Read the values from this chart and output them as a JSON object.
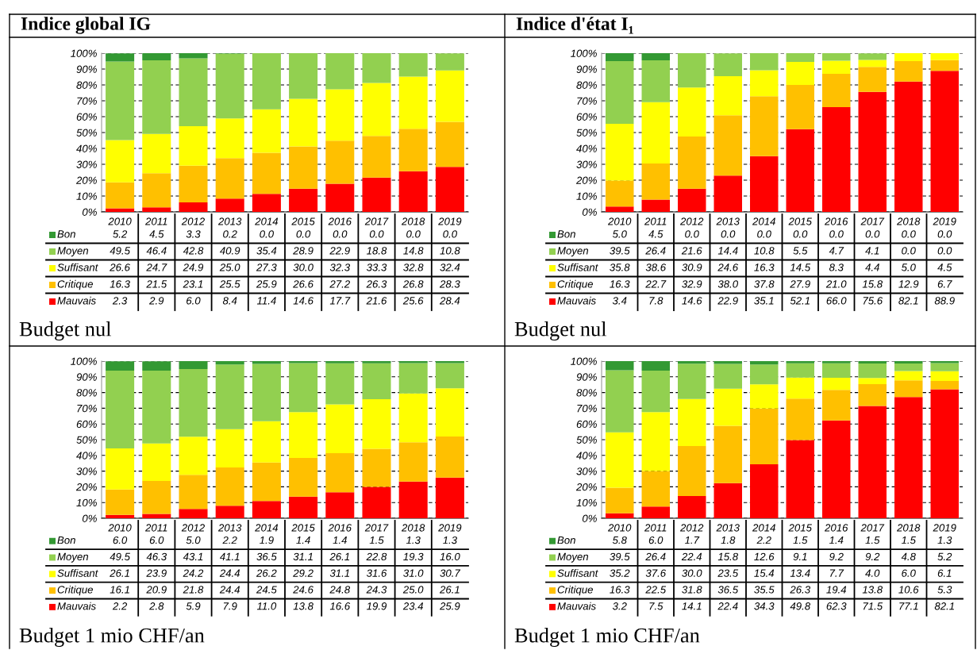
{
  "chart_data": [
    {
      "type": "bar",
      "stacked": true,
      "legend": "bottom left",
      "title": "Indice global IG",
      "annotations": [
        "Budget nul"
      ],
      "grid": "y",
      "categories": [
        "2010",
        "2011",
        "2012",
        "2013",
        "2014",
        "2015",
        "2016",
        "2017",
        "2018",
        "2019"
      ],
      "ylim": [
        0,
        100
      ],
      "yticks": [
        {
          "value": 0,
          "label": "0%"
        },
        {
          "value": 10,
          "label": "10%"
        },
        {
          "value": 20,
          "label": "20%"
        },
        {
          "value": 30,
          "label": "30%"
        },
        {
          "value": 40,
          "label": "40%"
        },
        {
          "value": 50,
          "label": "50%"
        },
        {
          "value": 60,
          "label": "60%"
        },
        {
          "value": 70,
          "label": "70%"
        },
        {
          "value": 80,
          "label": "80%"
        },
        {
          "value": 90,
          "label": "90%"
        },
        {
          "value": 100,
          "label": "100%"
        }
      ],
      "series": [
        {
          "name": "Mauvais",
          "color": "#ff0000",
          "values": [
            2.3,
            2.9,
            6.0,
            8.4,
            11.4,
            14.6,
            17.7,
            21.6,
            25.6,
            28.4
          ],
          "value_labels": [
            "2.3",
            "2.9",
            "6.0",
            "8.4",
            "11.4",
            "14.6",
            "17.7",
            "21.6",
            "25.6",
            "28.4"
          ]
        },
        {
          "name": "Critique",
          "color": "#ffc000",
          "values": [
            16.3,
            21.5,
            23.1,
            25.5,
            25.9,
            26.6,
            27.2,
            26.3,
            26.8,
            28.3
          ],
          "value_labels": [
            "16.3",
            "21.5",
            "23.1",
            "25.5",
            "25.9",
            "26.6",
            "27.2",
            "26.3",
            "26.8",
            "28.3"
          ]
        },
        {
          "name": "Suffisant",
          "color": "#ffff00",
          "values": [
            26.6,
            24.7,
            24.9,
            25.0,
            27.3,
            30.0,
            32.3,
            33.3,
            32.8,
            32.4
          ],
          "value_labels": [
            "26.6",
            "24.7",
            "24.9",
            "25.0",
            "27.3",
            "30.0",
            "32.3",
            "33.3",
            "32.8",
            "32.4"
          ]
        },
        {
          "name": "Moyen",
          "color": "#92d050",
          "values": [
            49.5,
            46.4,
            42.8,
            40.9,
            35.4,
            28.9,
            22.9,
            18.8,
            14.8,
            10.8
          ],
          "value_labels": [
            "49.5",
            "46.4",
            "42.8",
            "40.9",
            "35.4",
            "28.9",
            "22.9",
            "18.8",
            "14.8",
            "10.8"
          ]
        },
        {
          "name": "Bon",
          "color": "#339933",
          "values": [
            5.2,
            4.5,
            3.3,
            0.2,
            0.0,
            0.0,
            0.0,
            0.0,
            0.0,
            0.0
          ],
          "value_labels": [
            "5.2",
            "4.5",
            "3.3",
            "0.2",
            "0.0",
            "0.0",
            "0.0",
            "0.0",
            "0.0",
            "0.0"
          ]
        }
      ]
    },
    {
      "type": "bar",
      "stacked": true,
      "legend": "bottom left",
      "title": "Indice d'état I₁",
      "annotations": [
        "Budget nul"
      ],
      "grid": "y",
      "categories": [
        "2010",
        "2011",
        "2012",
        "2013",
        "2014",
        "2015",
        "2016",
        "2017",
        "2018",
        "2019"
      ],
      "ylim": [
        0,
        100
      ],
      "yticks": [
        {
          "value": 0,
          "label": "0%"
        },
        {
          "value": 10,
          "label": "10%"
        },
        {
          "value": 20,
          "label": "20%"
        },
        {
          "value": 30,
          "label": "30%"
        },
        {
          "value": 40,
          "label": "40%"
        },
        {
          "value": 50,
          "label": "50%"
        },
        {
          "value": 60,
          "label": "60%"
        },
        {
          "value": 70,
          "label": "70%"
        },
        {
          "value": 80,
          "label": "80%"
        },
        {
          "value": 90,
          "label": "90%"
        },
        {
          "value": 100,
          "label": "100%"
        }
      ],
      "series": [
        {
          "name": "Mauvais",
          "color": "#ff0000",
          "values": [
            3.4,
            7.8,
            14.6,
            22.9,
            35.1,
            52.1,
            66.0,
            75.6,
            82.1,
            88.9
          ],
          "value_labels": [
            "3.4",
            "7.8",
            "14.6",
            "22.9",
            "35.1",
            "52.1",
            "66.0",
            "75.6",
            "82.1",
            "88.9"
          ]
        },
        {
          "name": "Critique",
          "color": "#ffc000",
          "values": [
            16.3,
            22.7,
            32.9,
            38.0,
            37.8,
            27.9,
            21.0,
            15.8,
            12.9,
            6.7
          ],
          "value_labels": [
            "16.3",
            "22.7",
            "32.9",
            "38.0",
            "37.8",
            "27.9",
            "21.0",
            "15.8",
            "12.9",
            "6.7"
          ]
        },
        {
          "name": "Suffisant",
          "color": "#ffff00",
          "values": [
            35.8,
            38.6,
            30.9,
            24.6,
            16.3,
            14.5,
            8.3,
            4.4,
            5.0,
            4.5
          ],
          "value_labels": [
            "35.8",
            "38.6",
            "30.9",
            "24.6",
            "16.3",
            "14.5",
            "8.3",
            "4.4",
            "5.0",
            "4.5"
          ]
        },
        {
          "name": "Moyen",
          "color": "#92d050",
          "values": [
            39.5,
            26.4,
            21.6,
            14.4,
            10.8,
            5.5,
            4.7,
            4.1,
            0.0,
            0.0
          ],
          "value_labels": [
            "39.5",
            "26.4",
            "21.6",
            "14.4",
            "10.8",
            "5.5",
            "4.7",
            "4.1",
            "0.0",
            "0.0"
          ]
        },
        {
          "name": "Bon",
          "color": "#339933",
          "values": [
            5.0,
            4.5,
            0.0,
            0.0,
            0.0,
            0.0,
            0.0,
            0.0,
            0.0,
            0.0
          ],
          "value_labels": [
            "5.0",
            "4.5",
            "0.0",
            "0.0",
            "0.0",
            "0.0",
            "0.0",
            "0.0",
            "0.0",
            "0.0"
          ]
        }
      ]
    },
    {
      "type": "bar",
      "stacked": true,
      "legend": "bottom left",
      "annotations": [
        "Budget 1 mio CHF/an"
      ],
      "grid": "y",
      "categories": [
        "2010",
        "2011",
        "2012",
        "2013",
        "2014",
        "2015",
        "2016",
        "2017",
        "2018",
        "2019"
      ],
      "ylim": [
        0,
        100
      ],
      "yticks": [
        {
          "value": 0,
          "label": "0%"
        },
        {
          "value": 10,
          "label": "10%"
        },
        {
          "value": 20,
          "label": "20%"
        },
        {
          "value": 30,
          "label": "30%"
        },
        {
          "value": 40,
          "label": "40%"
        },
        {
          "value": 50,
          "label": "50%"
        },
        {
          "value": 60,
          "label": "60%"
        },
        {
          "value": 70,
          "label": "70%"
        },
        {
          "value": 80,
          "label": "80%"
        },
        {
          "value": 90,
          "label": "90%"
        },
        {
          "value": 100,
          "label": "100%"
        }
      ],
      "series": [
        {
          "name": "Mauvais",
          "color": "#ff0000",
          "values": [
            2.2,
            2.8,
            5.9,
            7.9,
            11.0,
            13.8,
            16.6,
            19.9,
            23.4,
            25.9
          ],
          "value_labels": [
            "2.2",
            "2.8",
            "5.9",
            "7.9",
            "11.0",
            "13.8",
            "16.6",
            "19.9",
            "23.4",
            "25.9"
          ]
        },
        {
          "name": "Critique",
          "color": "#ffc000",
          "values": [
            16.1,
            20.9,
            21.8,
            24.4,
            24.5,
            24.6,
            24.8,
            24.3,
            25.0,
            26.1
          ],
          "value_labels": [
            "16.1",
            "20.9",
            "21.8",
            "24.4",
            "24.5",
            "24.6",
            "24.8",
            "24.3",
            "25.0",
            "26.1"
          ]
        },
        {
          "name": "Suffisant",
          "color": "#ffff00",
          "values": [
            26.1,
            23.9,
            24.2,
            24.4,
            26.2,
            29.2,
            31.1,
            31.6,
            31.0,
            30.7
          ],
          "value_labels": [
            "26.1",
            "23.9",
            "24.2",
            "24.4",
            "26.2",
            "29.2",
            "31.1",
            "31.6",
            "31.0",
            "30.7"
          ]
        },
        {
          "name": "Moyen",
          "color": "#92d050",
          "values": [
            49.5,
            46.3,
            43.1,
            41.1,
            36.5,
            31.1,
            26.1,
            22.8,
            19.3,
            16.0
          ],
          "value_labels": [
            "49.5",
            "46.3",
            "43.1",
            "41.1",
            "36.5",
            "31.1",
            "26.1",
            "22.8",
            "19.3",
            "16.0"
          ]
        },
        {
          "name": "Bon",
          "color": "#339933",
          "values": [
            6.0,
            6.0,
            5.0,
            2.2,
            1.9,
            1.4,
            1.4,
            1.5,
            1.3,
            1.3
          ],
          "value_labels": [
            "6.0",
            "6.0",
            "5.0",
            "2.2",
            "1.9",
            "1.4",
            "1.4",
            "1.5",
            "1.3",
            "1.3"
          ]
        }
      ]
    },
    {
      "type": "bar",
      "stacked": true,
      "legend": "bottom left",
      "annotations": [
        "Budget 1 mio CHF/an"
      ],
      "grid": "y",
      "categories": [
        "2010",
        "2011",
        "2012",
        "2013",
        "2014",
        "2015",
        "2016",
        "2017",
        "2018",
        "2019"
      ],
      "ylim": [
        0,
        100
      ],
      "yticks": [
        {
          "value": 0,
          "label": "0%"
        },
        {
          "value": 10,
          "label": "10%"
        },
        {
          "value": 20,
          "label": "20%"
        },
        {
          "value": 30,
          "label": "30%"
        },
        {
          "value": 40,
          "label": "40%"
        },
        {
          "value": 50,
          "label": "50%"
        },
        {
          "value": 60,
          "label": "60%"
        },
        {
          "value": 70,
          "label": "70%"
        },
        {
          "value": 80,
          "label": "80%"
        },
        {
          "value": 90,
          "label": "90%"
        },
        {
          "value": 100,
          "label": "100%"
        }
      ],
      "series": [
        {
          "name": "Mauvais",
          "color": "#ff0000",
          "values": [
            3.2,
            7.5,
            14.1,
            22.4,
            34.3,
            49.8,
            62.3,
            71.5,
            77.1,
            82.1
          ],
          "value_labels": [
            "3.2",
            "7.5",
            "14.1",
            "22.4",
            "34.3",
            "49.8",
            "62.3",
            "71.5",
            "77.1",
            "82.1"
          ]
        },
        {
          "name": "Critique",
          "color": "#ffc000",
          "values": [
            16.3,
            22.5,
            31.8,
            36.5,
            35.5,
            26.3,
            19.4,
            13.8,
            10.6,
            5.3
          ],
          "value_labels": [
            "16.3",
            "22.5",
            "31.8",
            "36.5",
            "35.5",
            "26.3",
            "19.4",
            "13.8",
            "10.6",
            "5.3"
          ]
        },
        {
          "name": "Suffisant",
          "color": "#ffff00",
          "values": [
            35.2,
            37.6,
            30.0,
            23.5,
            15.4,
            13.4,
            7.7,
            4.0,
            6.0,
            6.1
          ],
          "value_labels": [
            "35.2",
            "37.6",
            "30.0",
            "23.5",
            "15.4",
            "13.4",
            "7.7",
            "4.0",
            "6.0",
            "6.1"
          ]
        },
        {
          "name": "Moyen",
          "color": "#92d050",
          "values": [
            39.5,
            26.4,
            22.4,
            15.8,
            12.6,
            9.1,
            9.2,
            9.2,
            4.8,
            5.2
          ],
          "value_labels": [
            "39.5",
            "26.4",
            "22.4",
            "15.8",
            "12.6",
            "9.1",
            "9.2",
            "9.2",
            "4.8",
            "5.2"
          ]
        },
        {
          "name": "Bon",
          "color": "#339933",
          "values": [
            5.8,
            6.0,
            1.7,
            1.8,
            2.2,
            1.5,
            1.4,
            1.5,
            1.5,
            1.3
          ],
          "value_labels": [
            "5.8",
            "6.0",
            "1.7",
            "1.8",
            "2.2",
            "1.5",
            "1.4",
            "1.5",
            "1.5",
            "1.3"
          ]
        }
      ]
    }
  ]
}
